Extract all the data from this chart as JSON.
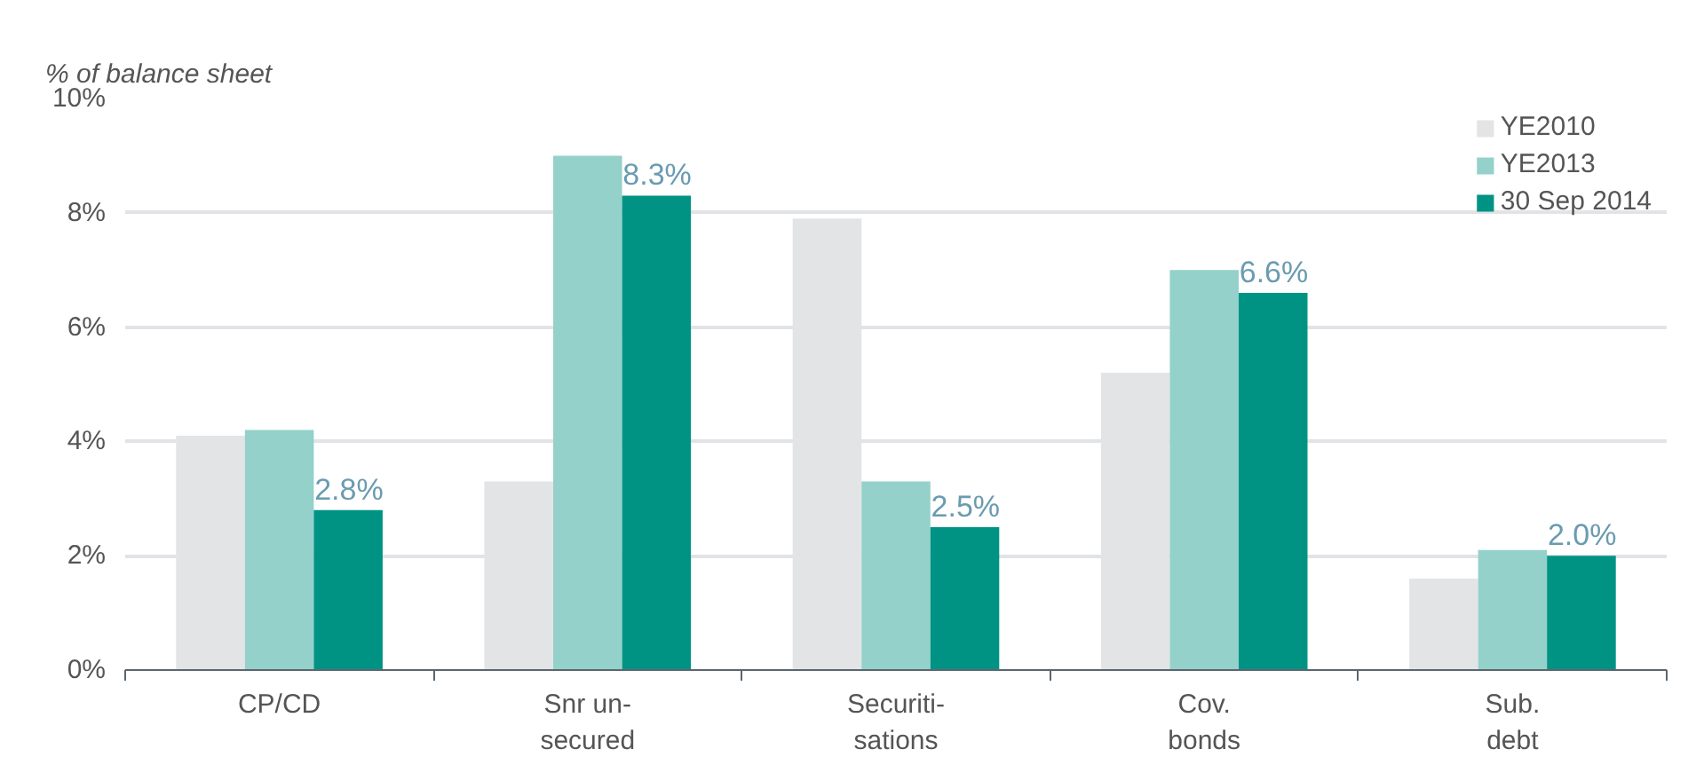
{
  "chart_data": {
    "type": "bar",
    "subtitle": "% of balance sheet",
    "categories": [
      "CP/CD",
      "Snr un-\nsecured",
      "Securiti-\nsations",
      "Cov.\nbonds",
      "Sub.\ndebt"
    ],
    "series": [
      {
        "name": "YE2010",
        "color": "#e3e4e6",
        "values": [
          4.1,
          3.3,
          7.9,
          5.2,
          1.6
        ]
      },
      {
        "name": "YE2013",
        "color": "#94d1ca",
        "values": [
          4.2,
          9.0,
          3.3,
          7.0,
          2.1
        ]
      },
      {
        "name": "30 Sep 2014",
        "color": "#009384",
        "values": [
          2.8,
          8.3,
          2.5,
          6.6,
          2.0
        ],
        "value_labels": [
          "2.8%",
          "8.3%",
          "2.5%",
          "6.6%",
          "2.0%"
        ]
      }
    ],
    "ylim": [
      0,
      10
    ],
    "yticks": [
      {
        "value": 0,
        "label": "0%"
      },
      {
        "value": 2,
        "label": "2%"
      },
      {
        "value": 4,
        "label": "4%"
      },
      {
        "value": 6,
        "label": "6%"
      },
      {
        "value": 8,
        "label": "8%"
      },
      {
        "value": 10,
        "label": "10%"
      }
    ],
    "grid": "y",
    "legend": "top right"
  }
}
